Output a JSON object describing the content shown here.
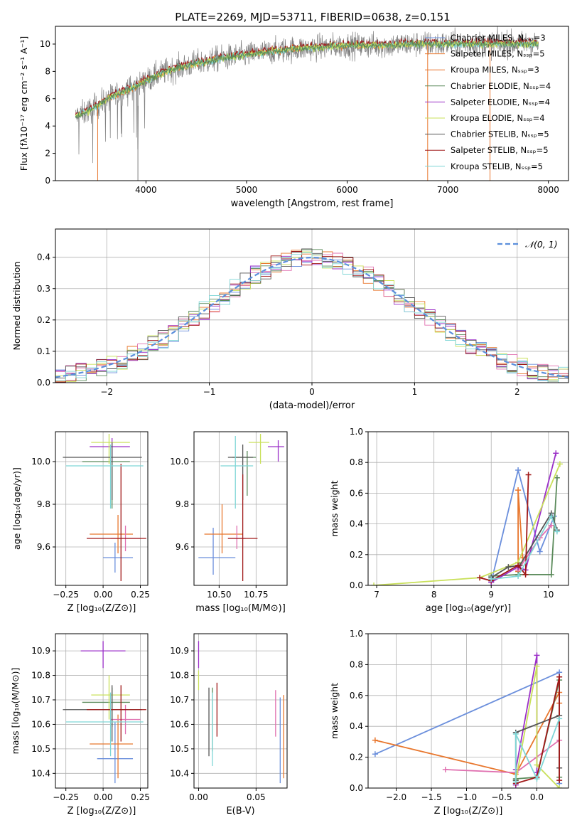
{
  "figure_title": "PLATE=2269, MJD=53711, FIBERID=0638, z=0.151",
  "colors": {
    "chabrier_miles": "#6b8fdc",
    "salpeter_miles": "#e8772e",
    "kroupa_miles": "#e8772e",
    "chabrier_elodie": "#5a8a5a",
    "salpeter_elodie": "#9b30c8",
    "kroupa_elodie": "#c9e05a",
    "chabrier_stelib": "#555555",
    "salpeter_stelib": "#a01818",
    "kroupa_stelib": "#7fd6d6",
    "normal_curve": "#5b8fdc"
  },
  "chart_data": [
    {
      "id": "spectrum",
      "type": "line",
      "xlabel": "wavelength [Angstrom, rest frame]",
      "ylabel": "Flux [fλ10⁻¹⁷ erg cm⁻² s⁻¹ A⁻¹]",
      "xlim": [
        3100,
        8200
      ],
      "ylim": [
        0,
        11.3
      ],
      "xticks": [
        "4000",
        "5000",
        "6000",
        "7000",
        "8000"
      ],
      "yticks": [
        "0",
        "2",
        "4",
        "6",
        "8",
        "10"
      ],
      "legend_position": "upper-right",
      "legend": [
        "Chabrier MILES, Nₛₛₚ=3",
        "Salpeter MILES, Nₛₛₚ=5",
        "Kroupa MILES, Nₛₛₚ=3",
        "Chabrier ELODIE, Nₛₛₚ=4",
        "Salpeter ELODIE, Nₛₛₚ=4",
        "Kroupa ELODIE, Nₛₛₚ=4",
        "Chabrier STELIB, Nₛₛₚ=5",
        "Salpeter STELIB, Nₛₛₚ=5",
        "Kroupa STELIB, Nₛₛₚ=5"
      ],
      "envelope": {
        "x": [
          3300,
          3400,
          3500,
          3600,
          3700,
          3800,
          3900,
          4000,
          4100,
          4200,
          4300,
          4400,
          4500,
          4600,
          4700,
          4800,
          4900,
          5000,
          5200,
          5400,
          5600,
          5800,
          6000,
          6200,
          6400,
          6600,
          6800,
          7000,
          7200,
          7400,
          7600
        ],
        "y": [
          4.7,
          5.0,
          5.4,
          5.9,
          6.3,
          6.6,
          6.9,
          7.3,
          7.7,
          8.0,
          8.2,
          8.4,
          8.6,
          8.7,
          8.9,
          9.0,
          9.1,
          9.2,
          9.4,
          9.6,
          9.7,
          9.8,
          9.9,
          9.9,
          9.9,
          10.0,
          10.0,
          10.0,
          10.0,
          10.0,
          10.0
        ]
      },
      "edge_drops": {
        "miles_orange_x": [
          3520,
          6800,
          7420
        ],
        "gray_x": [
          3920
        ]
      }
    },
    {
      "id": "residuals",
      "type": "histogram",
      "xlabel": "(data-model)/error",
      "ylabel": "Normed distribution",
      "xlim": [
        -2.5,
        2.5
      ],
      "ylim": [
        0,
        0.49
      ],
      "xticks": [
        "−2",
        "−1",
        "0",
        "1",
        "2"
      ],
      "yticks": [
        "0.0",
        "0.1",
        "0.2",
        "0.3",
        "0.4"
      ],
      "grid": true,
      "bin_width": 0.1,
      "curve_label": "𝒩(0, 1)",
      "legend_position": "upper-right"
    },
    {
      "id": "age_vs_z",
      "type": "scatter",
      "xlabel": "Z [log₁₀(Z/Z⊙)]",
      "ylabel": "age  [log₁₀(age/yr)]",
      "xlim": [
        -0.32,
        0.3
      ],
      "ylim": [
        9.42,
        10.14
      ],
      "xticks": [
        "−0.25",
        "0.00",
        "0.25"
      ],
      "yticks": [
        "9.6",
        "9.8",
        "10.0"
      ],
      "grid": true,
      "points": [
        {
          "color": "#6b8fdc",
          "x": 0.08,
          "y": 9.55,
          "xerr": [
            0.08,
            0.12
          ],
          "yerr": [
            0.07,
            0.07
          ]
        },
        {
          "color": "#e8772e",
          "x": 0.1,
          "y": 9.66,
          "xerr": [
            0.19,
            0.1
          ],
          "yerr": [
            0.09,
            0.09
          ]
        },
        {
          "color": "#e070b0",
          "x": 0.15,
          "y": 9.64,
          "xerr": [
            0.1,
            0.1
          ],
          "yerr": [
            0.06,
            0.06
          ]
        },
        {
          "color": "#5a8a5a",
          "x": 0.06,
          "y": 10.0,
          "xerr": [
            0.2,
            0.12
          ],
          "yerr": [
            0.22,
            0.06
          ]
        },
        {
          "color": "#9b30c8",
          "x": 0.06,
          "y": 10.07,
          "xerr": [
            0.15,
            0.12
          ],
          "yerr": [
            0.07,
            0.04
          ]
        },
        {
          "color": "#c9e05a",
          "x": 0.04,
          "y": 10.09,
          "xerr": [
            0.12,
            0.14
          ],
          "yerr": [
            0.1,
            0.04
          ]
        },
        {
          "color": "#555555",
          "x": 0.06,
          "y": 10.02,
          "xerr": [
            0.33,
            0.2
          ],
          "yerr": [
            0.2,
            0.07
          ]
        },
        {
          "color": "#a01818",
          "x": 0.12,
          "y": 9.64,
          "xerr": [
            0.23,
            0.17
          ],
          "yerr": [
            0.2,
            0.35
          ]
        },
        {
          "color": "#7fd6d6",
          "x": 0.05,
          "y": 9.98,
          "xerr": [
            0.3,
            0.22
          ],
          "yerr": [
            0.2,
            0.1
          ]
        }
      ]
    },
    {
      "id": "age_vs_mass",
      "type": "scatter",
      "xlabel": "mass [log₁₀(M/M⊙)]",
      "ylabel": "",
      "xlim": [
        10.33,
        10.96
      ],
      "ylim": [
        9.42,
        10.14
      ],
      "xticks": [
        "10.50",
        "10.75"
      ],
      "yticks": [
        "9.6",
        "9.8",
        "10.0"
      ],
      "grid": true,
      "points": [
        {
          "color": "#6b8fdc",
          "x": 10.46,
          "y": 9.55,
          "xerr": [
            0.1,
            0.15
          ],
          "yerr": [
            0.08,
            0.14
          ]
        },
        {
          "color": "#e8772e",
          "x": 10.52,
          "y": 9.66,
          "xerr": [
            0.12,
            0.14
          ],
          "yerr": [
            0.09,
            0.14
          ]
        },
        {
          "color": "#e070b0",
          "x": 10.62,
          "y": 9.64,
          "xerr": [
            0.06,
            0.06
          ],
          "yerr": [
            0.05,
            0.06
          ]
        },
        {
          "color": "#5a8a5a",
          "x": 10.69,
          "y": 10.02,
          "xerr": [
            0.1,
            0.06
          ],
          "yerr": [
            0.18,
            0.03
          ]
        },
        {
          "color": "#9b30c8",
          "x": 10.9,
          "y": 10.07,
          "xerr": [
            0.07,
            0.04
          ],
          "yerr": [
            0.07,
            0.03
          ]
        },
        {
          "color": "#c9e05a",
          "x": 10.78,
          "y": 10.09,
          "xerr": [
            0.08,
            0.06
          ],
          "yerr": [
            0.1,
            0.04
          ]
        },
        {
          "color": "#555555",
          "x": 10.66,
          "y": 10.02,
          "xerr": [
            0.1,
            0.07
          ],
          "yerr": [
            0.2,
            0.06
          ]
        },
        {
          "color": "#a01818",
          "x": 10.66,
          "y": 9.64,
          "xerr": [
            0.1,
            0.1
          ],
          "yerr": [
            0.2,
            0.3
          ]
        },
        {
          "color": "#7fd6d6",
          "x": 10.61,
          "y": 9.98,
          "xerr": [
            0.1,
            0.12
          ],
          "yerr": [
            0.2,
            0.14
          ]
        }
      ]
    },
    {
      "id": "weight_vs_age",
      "type": "line",
      "xlabel": "age  [log₁₀(age/yr)]",
      "ylabel": "mass weight",
      "xlim": [
        6.85,
        10.35
      ],
      "ylim": [
        0,
        1.0
      ],
      "xticks": [
        "7",
        "8",
        "9",
        "10"
      ],
      "yticks": [
        "0.0",
        "0.2",
        "0.4",
        "0.6",
        "0.8",
        "1.0"
      ],
      "grid": true,
      "series": [
        {
          "color": "#6b8fdc",
          "x": [
            9.0,
            9.47,
            9.85,
            10.1
          ],
          "y": [
            0.02,
            0.75,
            0.22,
            0.45
          ]
        },
        {
          "color": "#e8772e",
          "x": [
            9.47,
            9.47,
            9.55
          ],
          "y": [
            0.09,
            0.62,
            0.18
          ]
        },
        {
          "color": "#e070b0",
          "x": [
            9.47,
            9.85,
            10.05
          ],
          "y": [
            0.1,
            0.31,
            0.39
          ]
        },
        {
          "color": "#5a8a5a",
          "x": [
            9.0,
            9.47,
            10.05,
            10.15
          ],
          "y": [
            0.06,
            0.07,
            0.07,
            0.7
          ]
        },
        {
          "color": "#9b30c8",
          "x": [
            9.0,
            9.47,
            9.6,
            10.13
          ],
          "y": [
            0.02,
            0.12,
            0.1,
            0.86
          ]
        },
        {
          "color": "#c9e05a",
          "x": [
            6.95,
            8.8,
            9.47,
            10.2
          ],
          "y": [
            0.0,
            0.05,
            0.15,
            0.79
          ]
        },
        {
          "color": "#555555",
          "x": [
            9.0,
            9.3,
            9.5,
            10.05,
            10.15
          ],
          "y": [
            0.05,
            0.12,
            0.13,
            0.47,
            0.36
          ]
        },
        {
          "color": "#a01818",
          "x": [
            8.8,
            9.0,
            9.47,
            9.6,
            9.65
          ],
          "y": [
            0.05,
            0.03,
            0.13,
            0.07,
            0.72
          ]
        },
        {
          "color": "#7fd6d6",
          "x": [
            9.0,
            9.47,
            10.05,
            10.15
          ],
          "y": [
            0.04,
            0.06,
            0.45,
            0.35
          ]
        }
      ]
    },
    {
      "id": "mass_vs_z",
      "type": "scatter",
      "xlabel": "Z [log₁₀(Z/Z⊙)]",
      "ylabel": "mass [log₁₀(M/M⊙)]",
      "xlim": [
        -0.32,
        0.3
      ],
      "ylim": [
        10.34,
        10.97
      ],
      "xticks": [
        "−0.25",
        "0.00",
        "0.25"
      ],
      "yticks": [
        "10.4",
        "10.5",
        "10.6",
        "10.7",
        "10.8",
        "10.9"
      ],
      "grid": true,
      "points": [
        {
          "color": "#6b8fdc",
          "x": 0.08,
          "y": 10.46,
          "xerr": [
            0.12,
            0.12
          ],
          "yerr": [
            0.1,
            0.15
          ]
        },
        {
          "color": "#e8772e",
          "x": 0.1,
          "y": 10.52,
          "xerr": [
            0.19,
            0.1
          ],
          "yerr": [
            0.14,
            0.12
          ]
        },
        {
          "color": "#e070b0",
          "x": 0.15,
          "y": 10.62,
          "xerr": [
            0.1,
            0.1
          ],
          "yerr": [
            0.06,
            0.06
          ]
        },
        {
          "color": "#5a8a5a",
          "x": 0.06,
          "y": 10.69,
          "xerr": [
            0.2,
            0.12
          ],
          "yerr": [
            0.1,
            0.06
          ]
        },
        {
          "color": "#9b30c8",
          "x": 0.0,
          "y": 10.9,
          "xerr": [
            0.15,
            0.15
          ],
          "yerr": [
            0.07,
            0.04
          ]
        },
        {
          "color": "#c9e05a",
          "x": 0.04,
          "y": 10.72,
          "xerr": [
            0.12,
            0.14
          ],
          "yerr": [
            0.1,
            0.08
          ]
        },
        {
          "color": "#555555",
          "x": 0.06,
          "y": 10.66,
          "xerr": [
            0.33,
            0.2
          ],
          "yerr": [
            0.13,
            0.1
          ]
        },
        {
          "color": "#a01818",
          "x": 0.12,
          "y": 10.66,
          "xerr": [
            0.23,
            0.17
          ],
          "yerr": [
            0.13,
            0.1
          ]
        },
        {
          "color": "#7fd6d6",
          "x": 0.05,
          "y": 10.61,
          "xerr": [
            0.3,
            0.22
          ],
          "yerr": [
            0.14,
            0.12
          ]
        }
      ]
    },
    {
      "id": "mass_vs_ebv",
      "type": "scatter",
      "xlabel": "E(B-V)",
      "ylabel": "",
      "xlim": [
        -0.004,
        0.077
      ],
      "ylim": [
        10.34,
        10.97
      ],
      "xticks": [
        "0.00",
        "0.05"
      ],
      "yticks": [
        "10.4",
        "10.5",
        "10.6",
        "10.7",
        "10.8",
        "10.9"
      ],
      "grid": true,
      "points": [
        {
          "color": "#6b8fdc",
          "x": 0.071,
          "y": 10.46,
          "xerr": [
            0,
            0
          ],
          "yerr": [
            0.1,
            0.25
          ]
        },
        {
          "color": "#e8772e",
          "x": 0.074,
          "y": 10.52,
          "xerr": [
            0,
            0
          ],
          "yerr": [
            0.14,
            0.2
          ]
        },
        {
          "color": "#e070b0",
          "x": 0.067,
          "y": 10.62,
          "xerr": [
            0,
            0
          ],
          "yerr": [
            0.07,
            0.12
          ]
        },
        {
          "color": "#5a8a5a",
          "x": 0.012,
          "y": 10.69,
          "xerr": [
            0,
            0
          ],
          "yerr": [
            0.2,
            0.06
          ]
        },
        {
          "color": "#9b30c8",
          "x": 0.0,
          "y": 10.9,
          "xerr": [
            0,
            0
          ],
          "yerr": [
            0.07,
            0.04
          ]
        },
        {
          "color": "#c9e05a",
          "x": 0.0,
          "y": 10.79,
          "xerr": [
            0,
            0
          ],
          "yerr": [
            0.05,
            0.03
          ]
        },
        {
          "color": "#555555",
          "x": 0.009,
          "y": 10.6,
          "xerr": [
            0,
            0
          ],
          "yerr": [
            0.13,
            0.15
          ]
        },
        {
          "color": "#a01818",
          "x": 0.016,
          "y": 10.66,
          "xerr": [
            0,
            0
          ],
          "yerr": [
            0.11,
            0.11
          ]
        },
        {
          "color": "#7fd6d6",
          "x": 0.012,
          "y": 10.59,
          "xerr": [
            0,
            0
          ],
          "yerr": [
            0.16,
            0.14
          ]
        }
      ]
    },
    {
      "id": "weight_vs_z",
      "type": "line",
      "xlabel": "Z [log₁₀(Z/Z⊙)]",
      "ylabel": "mass weight",
      "xlim": [
        -2.4,
        0.45
      ],
      "ylim": [
        0,
        1.0
      ],
      "xticks": [
        "−2.0",
        "−1.5",
        "−1.0",
        "−0.5",
        "0.0"
      ],
      "yticks": [
        "0.0",
        "0.2",
        "0.4",
        "0.6",
        "0.8",
        "1.0"
      ],
      "grid": true,
      "series": [
        {
          "color": "#6b8fdc",
          "x": [
            -2.3,
            0.32,
            0.32
          ],
          "y": [
            0.22,
            0.75,
            0.03
          ]
        },
        {
          "color": "#e8772e",
          "x": [
            -2.3,
            -0.3,
            0.32,
            0.32
          ],
          "y": [
            0.31,
            0.09,
            0.62,
            0.55
          ]
        },
        {
          "color": "#e070b0",
          "x": [
            -1.3,
            -0.3,
            0.32
          ],
          "y": [
            0.12,
            0.1,
            0.31
          ]
        },
        {
          "color": "#5a8a5a",
          "x": [
            -0.3,
            0.0,
            0.32,
            0.32
          ],
          "y": [
            0.06,
            0.07,
            0.7,
            0.07
          ]
        },
        {
          "color": "#9b30c8",
          "x": [
            -0.3,
            -0.3,
            0.0,
            0.0
          ],
          "y": [
            0.02,
            0.12,
            0.86,
            0.1
          ]
        },
        {
          "color": "#c9e05a",
          "x": [
            -0.3,
            0.0,
            0.0,
            0.32
          ],
          "y": [
            0.05,
            0.79,
            0.15,
            0.0
          ]
        },
        {
          "color": "#555555",
          "x": [
            -0.3,
            -0.3,
            0.32,
            0.32
          ],
          "y": [
            0.05,
            0.36,
            0.47,
            0.13
          ]
        },
        {
          "color": "#a01818",
          "x": [
            -0.3,
            0.0,
            0.32,
            0.32
          ],
          "y": [
            0.03,
            0.07,
            0.72,
            0.05
          ]
        },
        {
          "color": "#7fd6d6",
          "x": [
            -0.3,
            -0.3,
            0.0,
            0.32
          ],
          "y": [
            0.04,
            0.35,
            0.06,
            0.45
          ]
        }
      ]
    }
  ]
}
